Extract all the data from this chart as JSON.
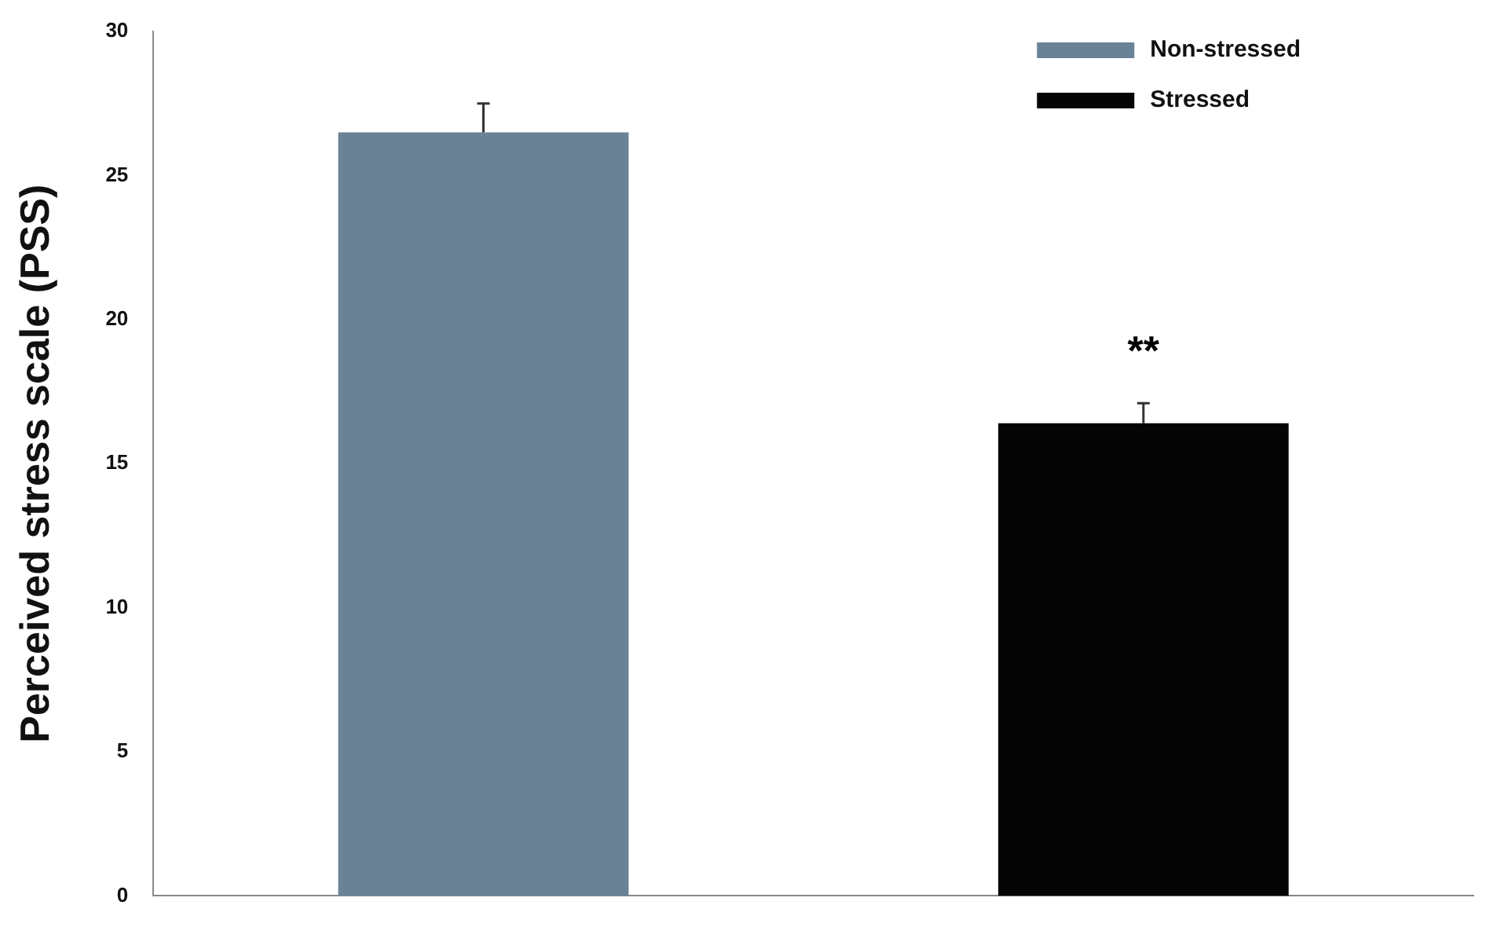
{
  "chart_data": {
    "type": "bar",
    "ylabel": "Perceived stress scale (PSS)",
    "categories": [
      null,
      null
    ],
    "series": [
      {
        "name": "Non-stressed",
        "color": "#6a8296",
        "values": [
          26.5,
          null
        ],
        "errors": [
          1.0,
          null
        ]
      },
      {
        "name": "Stressed",
        "color": "#050505",
        "values": [
          null,
          16.4
        ],
        "errors": [
          null,
          0.7
        ]
      }
    ],
    "ylim": [
      0,
      30
    ],
    "yticks": [
      0,
      5,
      10,
      15,
      20,
      25,
      30
    ],
    "grid": false,
    "legend": "top right",
    "annotations": [
      "**"
    ]
  }
}
